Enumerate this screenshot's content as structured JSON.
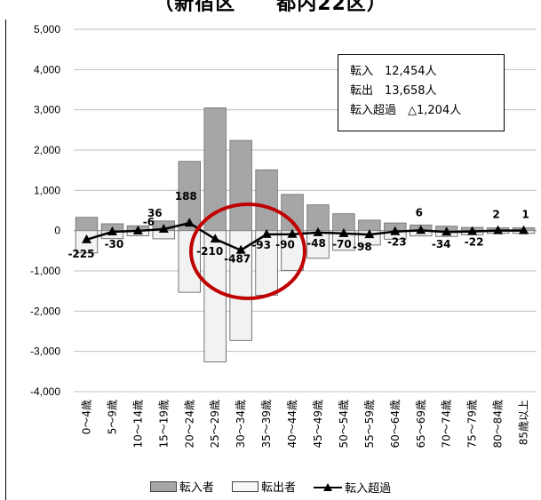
{
  "title": "（新宿区　　都内22区）",
  "summary": {
    "lines": [
      "転入　12,454人",
      "転出　13,658人",
      "転入超過　△1,204人"
    ]
  },
  "legend": {
    "items": [
      "転入者",
      "転出者",
      "転入超過"
    ]
  },
  "colors": {
    "inflow": "#a6a6a6",
    "outflow": "#f2f2f2",
    "net": "#000000",
    "highlight_circle": "#c00000",
    "grid": "#bfbfbf"
  },
  "chart_data": {
    "type": "bar",
    "categories": [
      "0～4歳",
      "5～9歳",
      "10～14歳",
      "15～19歳",
      "20～24歳",
      "25～29歳",
      "30～34歳",
      "35～39歳",
      "40～44歳",
      "45～49歳",
      "50～54歳",
      "55～59歳",
      "60～64歳",
      "65～69歳",
      "70～74歳",
      "75～79歳",
      "80～84歳",
      "85歳以上"
    ],
    "series": [
      {
        "name": "転入者",
        "type": "bar",
        "values": [
          330,
          170,
          120,
          240,
          1720,
          3050,
          2240,
          1510,
          900,
          640,
          420,
          260,
          190,
          140,
          110,
          80,
          70,
          70
        ]
      },
      {
        "name": "転出者",
        "type": "bar",
        "values": [
          -555,
          -200,
          -126,
          -204,
          -1532,
          -3260,
          -2727,
          -1603,
          -990,
          -688,
          -490,
          -358,
          -213,
          -134,
          -144,
          -102,
          -68,
          -69
        ]
      },
      {
        "name": "転入超過",
        "type": "line",
        "values": [
          -225,
          -30,
          -6,
          36,
          188,
          -210,
          -487,
          -93,
          -90,
          -48,
          -70,
          -98,
          -23,
          6,
          -34,
          -22,
          2,
          1
        ]
      }
    ],
    "data_labels": [
      "-225",
      "-30",
      "-6",
      "36",
      "188",
      "-210",
      "-487",
      "-93",
      "-90",
      "-48",
      "-70",
      "-98",
      "-23",
      "6",
      "-34",
      "-22",
      "2",
      "1"
    ],
    "yticks": [
      "5,000",
      "4,000",
      "3,000",
      "2,000",
      "1,000",
      "0",
      "-1,000",
      "-2,000",
      "-3,000",
      "-4,000"
    ],
    "ylim": [
      -4000,
      5000
    ],
    "grid": true,
    "legend_position": "bottom",
    "annotation": "red circle highlighting 25～29歳 through 35～39歳"
  }
}
